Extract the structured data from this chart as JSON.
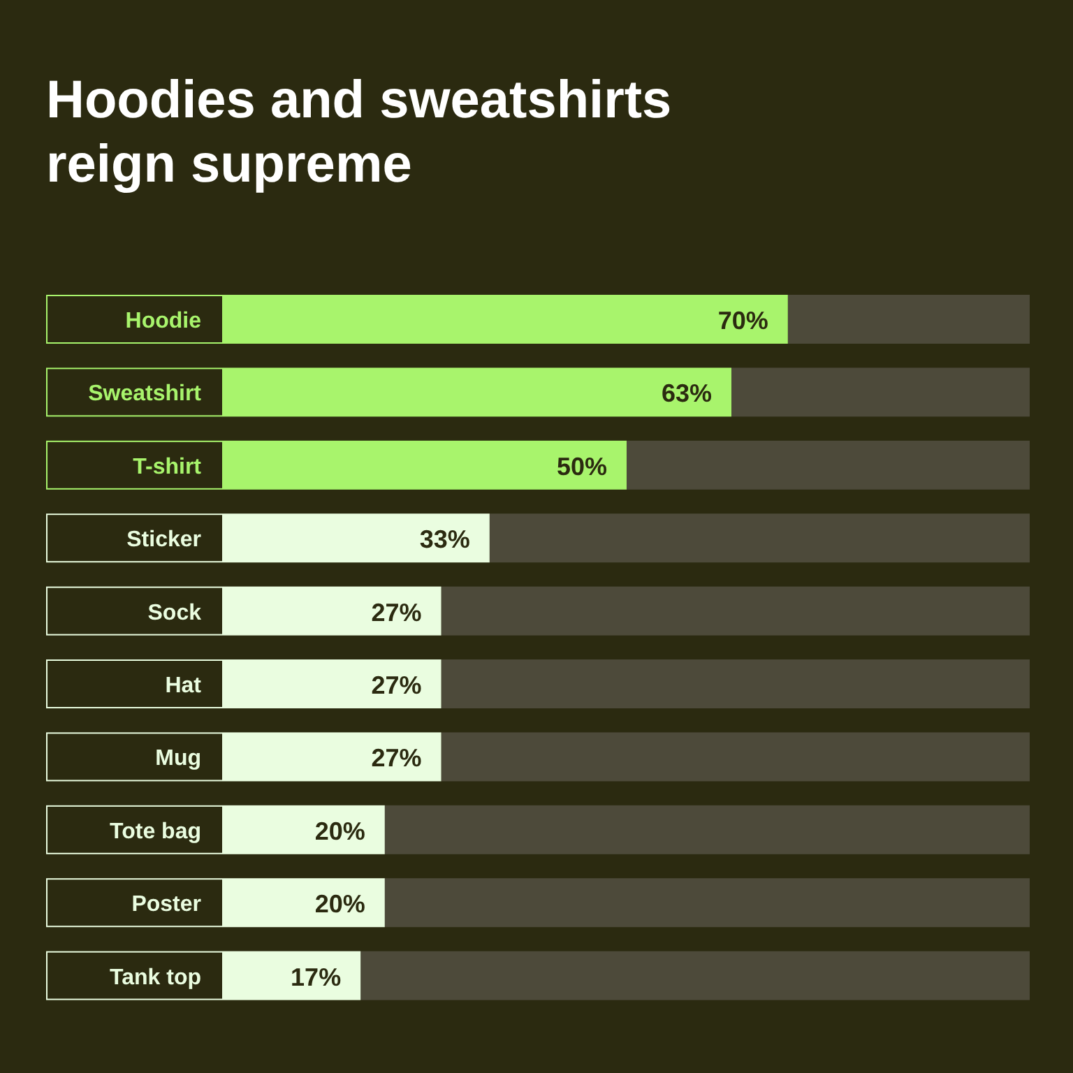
{
  "chart_data": {
    "type": "bar",
    "orientation": "horizontal",
    "title": "Hoodies and sweatshirts reign supreme",
    "categories": [
      "Hoodie",
      "Sweatshirt",
      "T-shirt",
      "Sticker",
      "Sock",
      "Hat",
      "Mug",
      "Tote bag",
      "Poster",
      "Tank top"
    ],
    "values": [
      70,
      63,
      50,
      33,
      27,
      27,
      27,
      20,
      20,
      17
    ],
    "value_labels": [
      "70%",
      "63%",
      "50%",
      "33%",
      "27%",
      "27%",
      "27%",
      "20%",
      "20%",
      "17%"
    ],
    "colors": [
      "#a8f46c",
      "#a8f46c",
      "#a8f46c",
      "#eafde0",
      "#eafde0",
      "#eafde0",
      "#eafde0",
      "#eafde0",
      "#eafde0",
      "#eafde0"
    ],
    "xlim": [
      0,
      100
    ]
  }
}
